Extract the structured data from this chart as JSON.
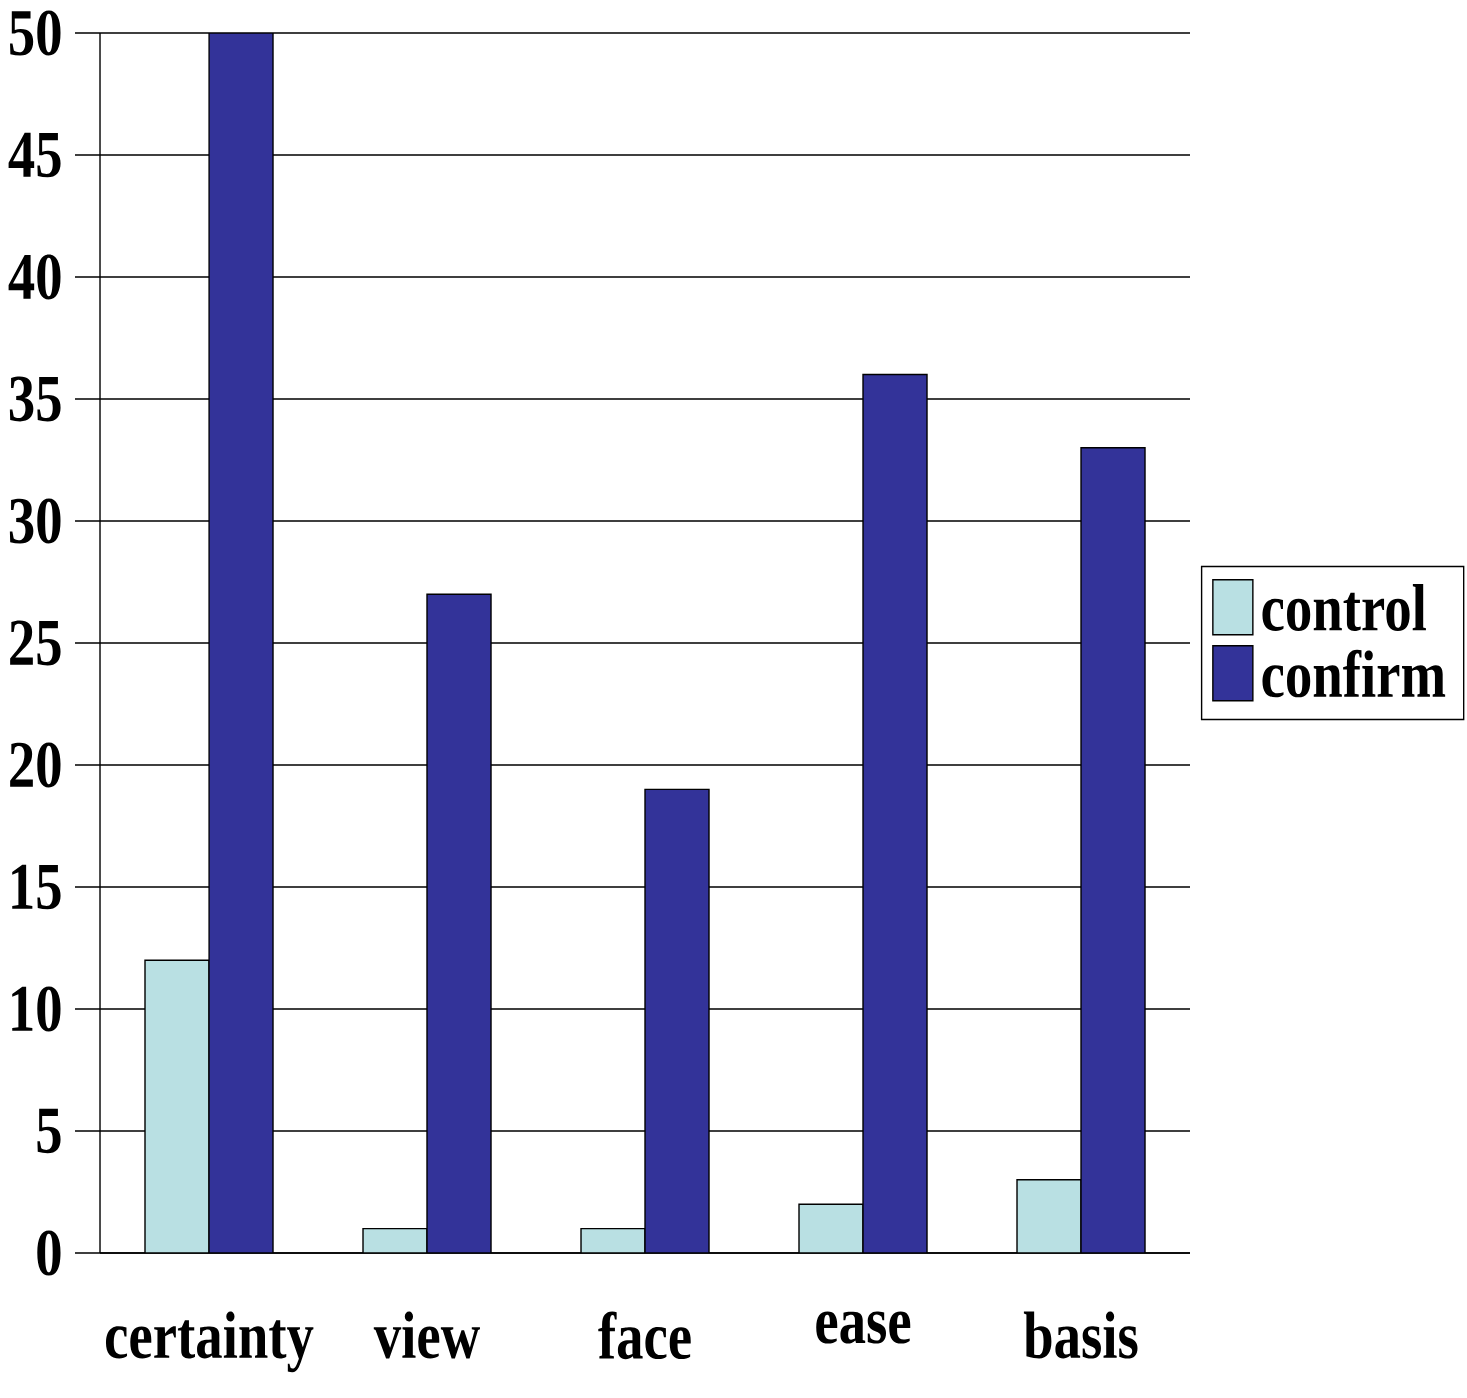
{
  "chart_data": {
    "type": "bar",
    "categories": [
      "certainty",
      "view",
      "face",
      "ease",
      "basis"
    ],
    "series": [
      {
        "name": "control",
        "color": "#b9e0e3",
        "values": [
          12,
          1,
          1,
          2,
          3
        ]
      },
      {
        "name": "confirm",
        "color": "#333399",
        "values": [
          50,
          27,
          19,
          36,
          33
        ]
      }
    ],
    "ylim": [
      0,
      50
    ],
    "yticks": [
      0,
      5,
      10,
      15,
      20,
      25,
      30,
      35,
      40,
      45,
      50
    ],
    "grid": "y",
    "legend": "right"
  }
}
